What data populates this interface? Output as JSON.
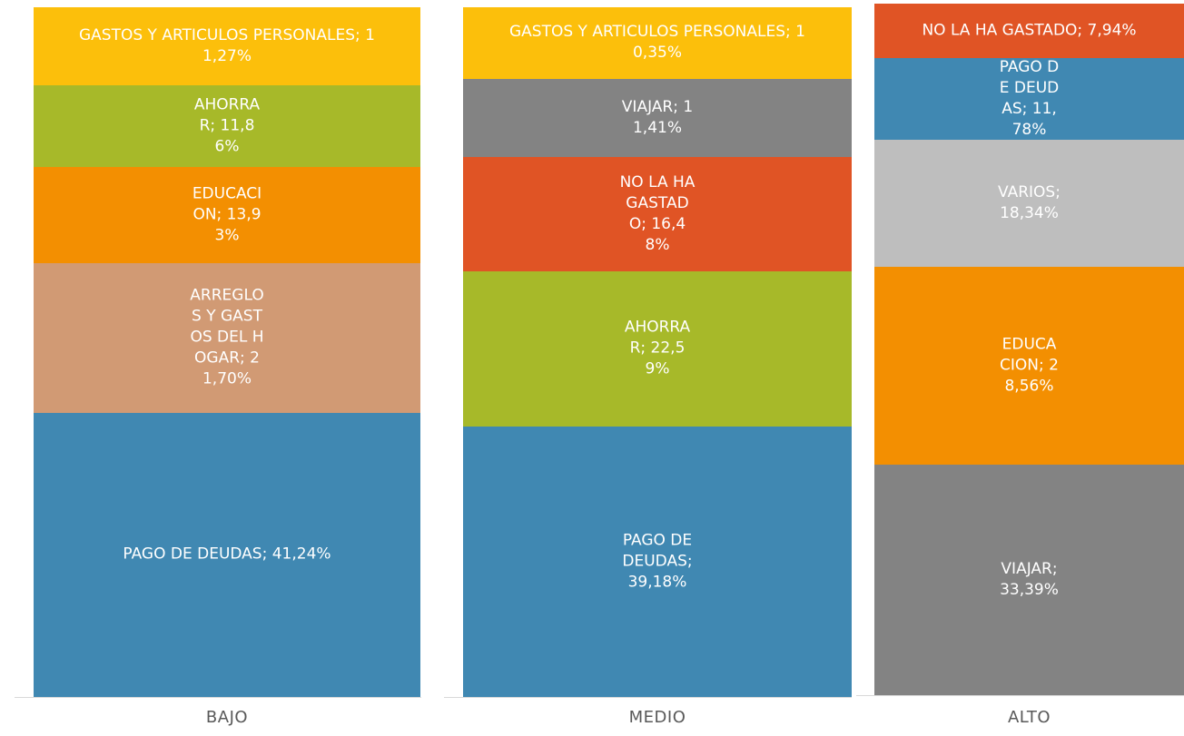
{
  "chart_data": {
    "type": "bar",
    "stacked": true,
    "normalized": "percent",
    "categories": [
      "BAJO",
      "MEDIO",
      "ALTO"
    ],
    "stacks": [
      {
        "category": "BAJO",
        "segments": [
          {
            "name": "PAGO DE DEUDAS",
            "value": 41.24,
            "label": "PAGO DE DEUDAS; 41,24%",
            "color": "#4088b2"
          },
          {
            "name": "ARREGLOS Y GASTOS DEL HOGAR",
            "value": 21.7,
            "label": "ARREGLOS Y GASTOS DEL HOGAR; 21,70%",
            "color": "#d19a74"
          },
          {
            "name": "EDUCACION",
            "value": 13.93,
            "label": "EDUCACION; 13,93%",
            "color": "#f38f01"
          },
          {
            "name": "AHORRAR",
            "value": 11.86,
            "label": "AHORRAR; 11,86%",
            "color": "#a7b929"
          },
          {
            "name": "GASTOS Y ARTICULOS PERSONALES",
            "value": 11.27,
            "label": "GASTOS Y ARTICULOS PERSONALES; 11,27%",
            "color": "#fcbf0b"
          }
        ]
      },
      {
        "category": "MEDIO",
        "segments": [
          {
            "name": "PAGO DE DEUDAS",
            "value": 39.18,
            "label": "PAGO DE DEUDAS; 39,18%",
            "color": "#4088b2"
          },
          {
            "name": "AHORRAR",
            "value": 22.59,
            "label": "AHORRAR; 22,59%",
            "color": "#a7b929"
          },
          {
            "name": "NO LA HA GASTADO",
            "value": 16.48,
            "label": "NO LA HA GASTADO; 16,48%",
            "color": "#e05425"
          },
          {
            "name": "VIAJAR",
            "value": 11.41,
            "label": "VIAJAR; 11,41%",
            "color": "#838383"
          },
          {
            "name": "GASTOS Y ARTICULOS PERSONALES",
            "value": 10.35,
            "label": "GASTOS Y ARTICULOS PERSONALES; 10,35%",
            "color": "#fcbf0b"
          }
        ]
      },
      {
        "category": "ALTO",
        "segments": [
          {
            "name": "VIAJAR",
            "value": 33.39,
            "label": "VIAJAR; 33,39%",
            "color": "#838383"
          },
          {
            "name": "EDUCACION",
            "value": 28.56,
            "label": "EDUCACION; 28,56%",
            "color": "#f38f01"
          },
          {
            "name": "VARIOS",
            "value": 18.34,
            "label": "VARIOS; 18,34%",
            "color": "#bebebe"
          },
          {
            "name": "PAGO DE DEUDAS",
            "value": 11.78,
            "label": "PAGO DE DEUDAS; 11,78%",
            "color": "#4088b2"
          },
          {
            "name": "NO LA HA GASTADO",
            "value": 7.94,
            "label": "NO LA HA GASTADO; 7,94%",
            "color": "#e05425"
          }
        ]
      }
    ],
    "ylim": [
      0,
      100
    ],
    "grid": false,
    "legend": "none"
  }
}
